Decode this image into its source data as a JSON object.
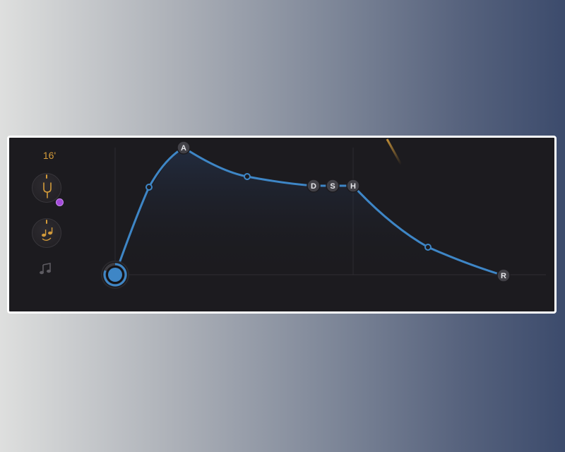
{
  "octave_label": "16'",
  "colors": {
    "accent": "#d39b3a",
    "curve": "#3e86c6",
    "mod_dot": "#a34ad8",
    "panel_bg": "#1c1b1f"
  },
  "icons": {
    "knob1": "tuning-fork-icon",
    "knob2": "tied-notes-icon",
    "bottom": "music-note-icon"
  },
  "envelope": {
    "handles": {
      "attack": "A",
      "decay": "D",
      "sustain": "S",
      "hold": "H",
      "release": "R"
    }
  }
}
